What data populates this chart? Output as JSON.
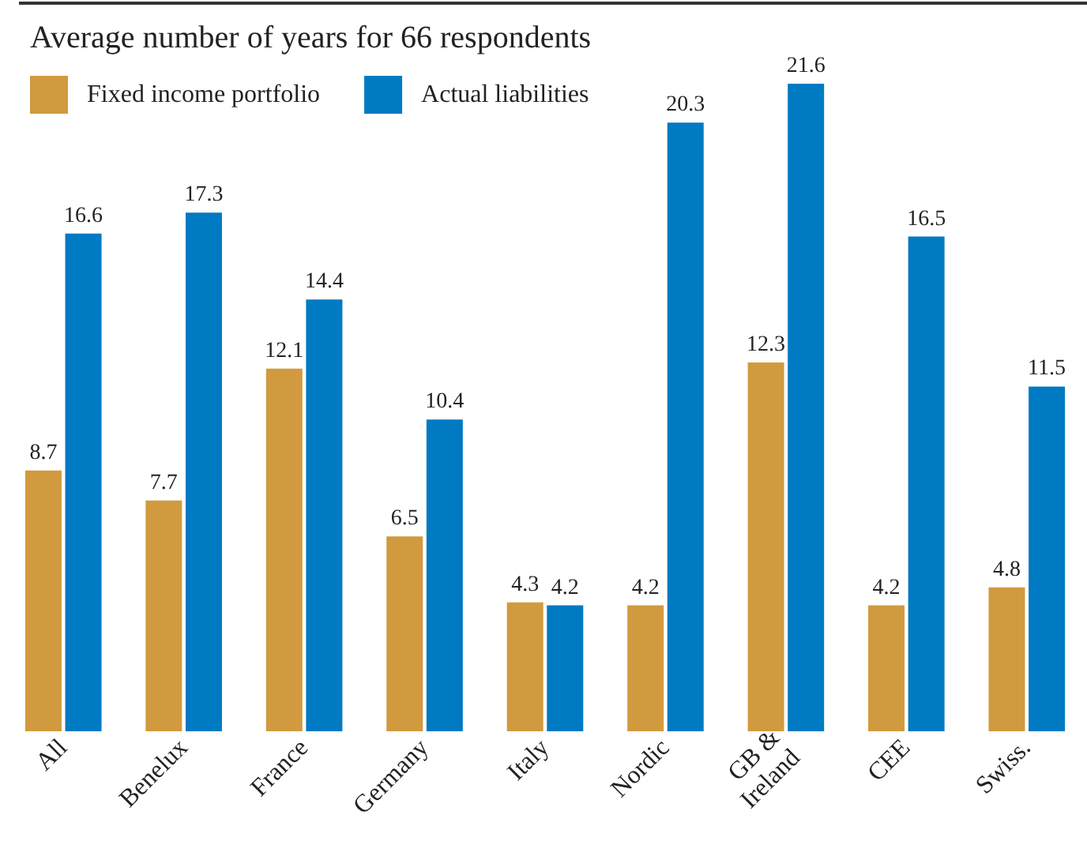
{
  "chart_data": {
    "type": "bar",
    "title": "Average number of years for 66 respondents",
    "categories": [
      "All",
      "Benelux",
      "France",
      "Germany",
      "Italy",
      "Nordic",
      "GB &\nIreland",
      "CEE",
      "Swiss."
    ],
    "series": [
      {
        "name": "Fixed income portfolio",
        "color": "#d19a3f",
        "values": [
          8.7,
          7.7,
          12.1,
          6.5,
          4.3,
          4.2,
          12.3,
          4.2,
          4.8
        ]
      },
      {
        "name": "Actual liabilities",
        "color": "#007ac2",
        "values": [
          16.6,
          17.3,
          14.4,
          10.4,
          4.2,
          20.3,
          21.6,
          16.5,
          11.5
        ]
      }
    ],
    "data_labels": true,
    "legend": "top left"
  }
}
